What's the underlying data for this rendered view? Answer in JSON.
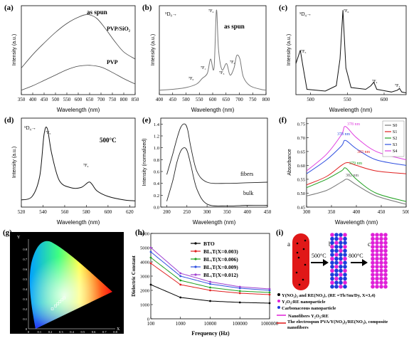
{
  "figure": {
    "panel_labels": [
      "(a)",
      "(b)",
      "(c)",
      "(d)",
      "(e)",
      "(f)",
      "(g)",
      "(h)",
      "(i)"
    ]
  },
  "chart_data": [
    {
      "id": "a",
      "type": "line",
      "xlabel": "Wavelength (nm)",
      "ylabel": "Intensity (a.u.)",
      "xticks": [
        "350",
        "400",
        "450",
        "500",
        "550",
        "600",
        "650",
        "700",
        "750",
        "800",
        "850"
      ],
      "xlim": [
        350,
        850
      ],
      "ylim": [
        0,
        1
      ],
      "annotations": [
        "as spun"
      ],
      "series": [
        {
          "name": "PVP/SiO₂",
          "x": [
            350,
            400,
            450,
            500,
            550,
            600,
            640,
            680,
            720,
            760,
            800,
            850
          ],
          "y": [
            0.3,
            0.45,
            0.58,
            0.7,
            0.8,
            0.87,
            0.9,
            0.86,
            0.74,
            0.6,
            0.48,
            0.4
          ]
        },
        {
          "name": "PVP",
          "x": [
            350,
            400,
            450,
            500,
            550,
            600,
            650,
            700,
            750,
            800,
            850
          ],
          "y": [
            0.05,
            0.1,
            0.16,
            0.22,
            0.28,
            0.32,
            0.33,
            0.31,
            0.25,
            0.18,
            0.12
          ]
        }
      ]
    },
    {
      "id": "b",
      "type": "line",
      "xlabel": "Wavelength (nm)",
      "ylabel": "Intensity (a.u.)",
      "xticks": [
        "400",
        "450",
        "500",
        "550",
        "600",
        "650",
        "700",
        "750",
        "800"
      ],
      "xlim": [
        400,
        800
      ],
      "ylim": [
        0,
        1
      ],
      "annotations": [
        "as spun",
        "⁵D₀→",
        "⁷F₀",
        "⁷F₁",
        "⁷F₂",
        "⁷F₃",
        "⁷F₄"
      ],
      "series": [
        {
          "name": "",
          "x": [
            400,
            450,
            500,
            540,
            560,
            580,
            592,
            605,
            614,
            622,
            635,
            652,
            665,
            680,
            690,
            702,
            715,
            740,
            780,
            800
          ],
          "y": [
            0.05,
            0.06,
            0.08,
            0.12,
            0.18,
            0.24,
            0.4,
            0.3,
            0.95,
            0.5,
            0.28,
            0.35,
            0.22,
            0.3,
            0.44,
            0.4,
            0.2,
            0.1,
            0.06,
            0.05
          ]
        }
      ]
    },
    {
      "id": "c",
      "type": "line",
      "xlabel": "Wavelength (nm)",
      "ylabel": "Intensity (a.u.)",
      "xticks": [
        "500",
        "550",
        "600"
      ],
      "xlim": [
        480,
        630
      ],
      "ylim": [
        0,
        1
      ],
      "annotations": [
        "⁵D₄→",
        "⁷F₆",
        "⁷F₅",
        "⁷F₄",
        "⁷F₃"
      ],
      "series": [
        {
          "name": "",
          "x": [
            480,
            486,
            490,
            495,
            520,
            535,
            540,
            544,
            548,
            555,
            575,
            582,
            586,
            590,
            610,
            618,
            621,
            624,
            630
          ],
          "y": [
            0.35,
            0.5,
            0.3,
            0.06,
            0.04,
            0.1,
            0.4,
            0.95,
            0.3,
            0.08,
            0.06,
            0.1,
            0.14,
            0.06,
            0.03,
            0.05,
            0.07,
            0.03,
            0.02
          ]
        }
      ]
    },
    {
      "id": "d",
      "type": "line",
      "xlabel": "Wavelength (nm)",
      "ylabel": "Intensity (a.u.)",
      "xticks": [
        "520",
        "540",
        "560",
        "580",
        "600",
        "620"
      ],
      "xlim": [
        520,
        625
      ],
      "ylim": [
        0,
        1
      ],
      "annotations": [
        "500°C",
        "⁵D₄→",
        "⁷F₅",
        "⁷F₄"
      ],
      "series": [
        {
          "name": "",
          "x": [
            520,
            530,
            537,
            541,
            544,
            548,
            555,
            565,
            575,
            582,
            585,
            590,
            600,
            615,
            625
          ],
          "y": [
            0.08,
            0.12,
            0.35,
            0.82,
            0.88,
            0.6,
            0.3,
            0.22,
            0.22,
            0.28,
            0.26,
            0.18,
            0.12,
            0.08,
            0.07
          ]
        }
      ]
    },
    {
      "id": "e",
      "type": "line",
      "xlabel": "Wavelength (nm)",
      "ylabel": "Intensity (normalized)",
      "xticks": [
        "200",
        "250",
        "300",
        "350",
        "400",
        "450"
      ],
      "yticks": [
        "0.0",
        "0.2",
        "0.4",
        "0.6",
        "0.8",
        "1.0",
        "1.2",
        "1.4"
      ],
      "xlim": [
        185,
        450
      ],
      "ylim": [
        0,
        1.5
      ],
      "annotations": [
        "fibers",
        "bulk"
      ],
      "series": [
        {
          "name": "fibers",
          "x": [
            200,
            215,
            225,
            235,
            245,
            252,
            260,
            275,
            300,
            350,
            400,
            450
          ],
          "y": [
            0.55,
            0.9,
            1.15,
            1.35,
            1.4,
            1.3,
            1.0,
            0.6,
            0.42,
            0.4,
            0.41,
            0.42
          ]
        },
        {
          "name": "bulk",
          "x": [
            200,
            215,
            225,
            235,
            245,
            252,
            260,
            275,
            300,
            350,
            400,
            450
          ],
          "y": [
            0.1,
            0.45,
            0.75,
            0.95,
            1.0,
            0.92,
            0.7,
            0.3,
            0.05,
            0.02,
            0.03,
            0.03
          ]
        }
      ]
    },
    {
      "id": "f",
      "type": "line",
      "xlabel": "Wavelength (nm)",
      "ylabel": "Absorbance",
      "xticks": [
        "300",
        "350",
        "400",
        "450",
        "500"
      ],
      "yticks": [
        "0.45",
        "0.50",
        "0.55",
        "0.60",
        "0.65",
        "0.70",
        "0.75"
      ],
      "xlim": [
        300,
        500
      ],
      "ylim": [
        0.45,
        0.77
      ],
      "annotations": [
        "378 nm",
        "378 nm",
        "383 nm",
        "379 nm",
        "382 nm"
      ],
      "series": [
        {
          "name": "S0",
          "color": "#777777",
          "x": [
            300,
            340,
            370,
            382,
            400,
            440,
            500
          ],
          "y": [
            0.49,
            0.51,
            0.54,
            0.55,
            0.53,
            0.49,
            0.46
          ]
        },
        {
          "name": "S1",
          "color": "#e02020",
          "x": [
            300,
            340,
            370,
            383,
            400,
            440,
            500
          ],
          "y": [
            0.53,
            0.56,
            0.6,
            0.61,
            0.6,
            0.58,
            0.57
          ]
        },
        {
          "name": "S2",
          "color": "#20a020",
          "x": [
            300,
            340,
            370,
            379,
            400,
            440,
            500
          ],
          "y": [
            0.52,
            0.55,
            0.58,
            0.59,
            0.55,
            0.5,
            0.47
          ]
        },
        {
          "name": "S3",
          "color": "#3050e0",
          "x": [
            300,
            340,
            370,
            378,
            400,
            440,
            500
          ],
          "y": [
            0.57,
            0.62,
            0.67,
            0.69,
            0.66,
            0.62,
            0.6
          ]
        },
        {
          "name": "S4",
          "color": "#e040e0",
          "x": [
            300,
            340,
            370,
            378,
            400,
            440,
            500
          ],
          "y": [
            0.58,
            0.64,
            0.71,
            0.74,
            0.7,
            0.65,
            0.62
          ]
        }
      ]
    },
    {
      "id": "g",
      "type": "scatter",
      "xlabel": "X",
      "ylabel": "Y",
      "xticks": [
        "0",
        "0.1",
        "0.2",
        "0.3",
        "0.4",
        "0.5",
        "0.6",
        "0.7",
        "0.8"
      ],
      "yticks": [
        "0",
        "0.1",
        "0.2",
        "0.3",
        "0.4",
        "0.5",
        "0.6",
        "0.7",
        "0.8"
      ],
      "xlim": [
        0,
        0.8
      ],
      "ylim": [
        0,
        0.9
      ],
      "series": [
        {
          "name": "",
          "x": [
            0.22,
            0.25,
            0.27,
            0.29,
            0.31,
            0.33
          ],
          "y": [
            0.2,
            0.23,
            0.25,
            0.27,
            0.29,
            0.31
          ]
        }
      ]
    },
    {
      "id": "h",
      "type": "line",
      "xlabel": "Frequency (Hz)",
      "ylabel": "Dielectric Constant",
      "xscale": "log",
      "xticks": [
        "100",
        "1000",
        "10000",
        "100000",
        "1000000"
      ],
      "yticks": [
        "0",
        "1000",
        "2000",
        "3000",
        "4000",
        "5000",
        "6000"
      ],
      "xlim": [
        100,
        1000000
      ],
      "ylim": [
        0,
        6000
      ],
      "legend": "top-right",
      "series": [
        {
          "name": "BTO",
          "color": "#000000",
          "x": [
            100,
            1000,
            10000,
            100000,
            1000000
          ],
          "y": [
            2400,
            1500,
            1250,
            1150,
            1100
          ]
        },
        {
          "name": "BLₓT(X=0.003)",
          "color": "#e02020",
          "x": [
            100,
            1000,
            10000,
            100000,
            1000000
          ],
          "y": [
            3900,
            2400,
            2000,
            1800,
            1700
          ]
        },
        {
          "name": "BLₓT(X=0.006)",
          "color": "#20a020",
          "x": [
            100,
            1000,
            10000,
            100000,
            1000000
          ],
          "y": [
            4300,
            2700,
            2200,
            1950,
            1850
          ]
        },
        {
          "name": "BLₓT(X=0.009)",
          "color": "#3050e0",
          "x": [
            100,
            1000,
            10000,
            100000,
            1000000
          ],
          "y": [
            4700,
            3000,
            2450,
            2150,
            2000
          ]
        },
        {
          "name": "BLₓT(X=0.012)",
          "color": "#a040d0",
          "x": [
            100,
            1000,
            10000,
            100000,
            1000000
          ],
          "y": [
            5000,
            3200,
            2600,
            2250,
            2100
          ]
        }
      ]
    }
  ],
  "panel_g_extra": {
    "tick_values": [
      "0.8",
      "0.7",
      "0.6",
      "0.5",
      "0.4",
      "0.3",
      "0.2",
      "0.1",
      "0"
    ]
  },
  "panel_i": {
    "step_labels": [
      "a",
      "b",
      "c"
    ],
    "temps": [
      "500°C",
      "800°C"
    ],
    "legend": [
      {
        "marker": "black-dot",
        "text": "Y(NO₃)₃ and RE(NO₃)ₓ (RE =Tb/Sm/Dy, X=3,4)"
      },
      {
        "marker": "magenta-dot",
        "text": "Y₂O₃:RE nanoparticle"
      },
      {
        "marker": "blue-dot",
        "text": "Carbonaceous nanoparticle"
      },
      {
        "marker": "magenta-line",
        "text": "Nanofibers Y₂O₃:RE"
      },
      {
        "marker": "red-line",
        "text": "The electrospun PVA/Y(NO₃)₃/RE(NO₃)ₓ composite nanofibers"
      }
    ],
    "colors": {
      "red": "#e01818",
      "blue": "#1c3cdc",
      "magenta": "#e020d8"
    }
  }
}
